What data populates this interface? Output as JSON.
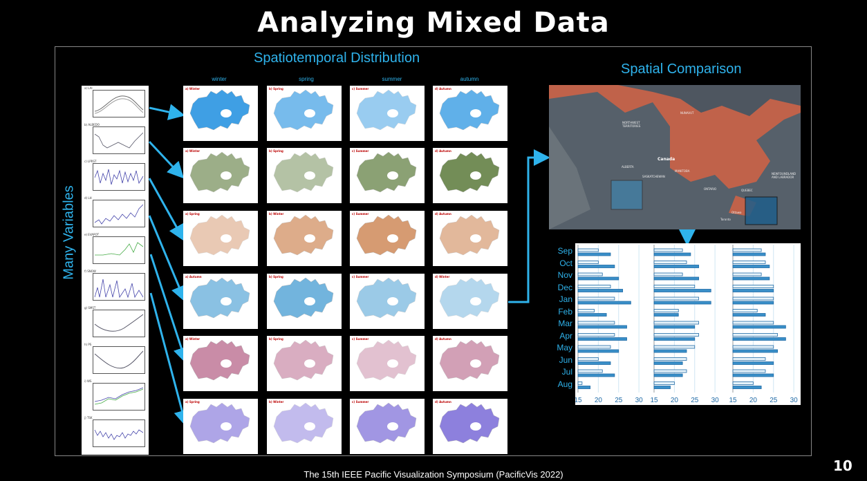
{
  "slide": {
    "title": "Analyzing Mixed Data",
    "footer": "The 15th IEEE Pacific Visualization Symposium (PacificVis 2022)",
    "page_number": "10"
  },
  "left_panel": {
    "label": "Many Variables",
    "variables": [
      {
        "label": "a) LAI"
      },
      {
        "label": "b) ALBEDO"
      },
      {
        "label": "c) LPRST"
      },
      {
        "label": "d) LH"
      },
      {
        "label": "e) EVAPOT"
      },
      {
        "label": "f) SNOW"
      },
      {
        "label": "g) SMST"
      },
      {
        "label": "h) PS"
      },
      {
        "label": "i) WS"
      },
      {
        "label": "j) TSK"
      }
    ]
  },
  "middle_panel": {
    "heading": "Spatiotemporal Distribution",
    "seasons": [
      "winter",
      "spring",
      "summer",
      "autumn"
    ],
    "rows": [
      {
        "color": "#1e8fe0",
        "tags": [
          "a) Winter",
          "b) Spring",
          "c) Summer",
          "d) Autumn"
        ]
      },
      {
        "color": "#5b7a3a",
        "tags": [
          "a) Winter",
          "b) Spring",
          "c) Summer",
          "d) Autumn"
        ]
      },
      {
        "color": "#d08a5a",
        "tags": [
          "a) Spring",
          "b) Winter",
          "c) Summer",
          "d) Autumn"
        ]
      },
      {
        "color": "#5aa8d8",
        "tags": [
          "a) Autumn",
          "b) Spring",
          "c) Summer",
          "d) Winter"
        ]
      },
      {
        "color": "#c07898",
        "tags": [
          "a) Winter",
          "b) Spring",
          "c) Summer",
          "d) Autumn"
        ]
      },
      {
        "color": "#7a6ad8",
        "tags": [
          "a) Spring",
          "b) Winter",
          "c) Summer",
          "d) Autumn"
        ]
      }
    ]
  },
  "right_panel": {
    "heading": "Spatial Comparison",
    "map_label": "Canada",
    "map_labels": [
      "NORTHWEST TERRITORIES",
      "NUNAVUT",
      "ALBERTA",
      "SASKATCHEWAN",
      "MANITOBA",
      "ONTARIO",
      "QUEBEC",
      "NEWFOUNDLAND AND LABRADOR",
      "Ottawa",
      "Toronto"
    ],
    "colors": {
      "land": "#56606a",
      "water": "#c0624a",
      "highlight": "#3a8fc0"
    }
  },
  "chart_data": {
    "type": "bar",
    "categories": [
      "Sep",
      "Oct",
      "Nov",
      "Dec",
      "Jan",
      "Feb",
      "Mar",
      "Apr",
      "May",
      "Jun",
      "Jul",
      "Aug"
    ],
    "panels": [
      {
        "series": [
          {
            "values": [
              20,
              20,
              21,
              23,
              24,
              19,
              24,
              24,
              23,
              20,
              21,
              16
            ]
          },
          {
            "values": [
              23,
              24,
              25,
              26,
              28,
              22,
              27,
              27,
              25,
              23,
              24,
              18
            ]
          }
        ]
      },
      {
        "series": [
          {
            "values": [
              22,
              23,
              22,
              25,
              26,
              21,
              26,
              26,
              25,
              23,
              23,
              20
            ]
          },
          {
            "values": [
              24,
              26,
              26,
              29,
              29,
              21,
              25,
              25,
              23,
              22,
              22,
              19
            ]
          }
        ]
      },
      {
        "series": [
          {
            "values": [
              22,
              23,
              22,
              25,
              25,
              21,
              25,
              26,
              25,
              23,
              23,
              20
            ]
          },
          {
            "values": [
              23,
              24,
              24,
              25,
              25,
              23,
              28,
              28,
              26,
              25,
              25,
              22
            ]
          }
        ]
      }
    ],
    "xticks": [
      "15",
      "20",
      "25",
      "30"
    ],
    "xlim": [
      15,
      31
    ],
    "colors": [
      "#5aa8d8",
      "#1f6aa6"
    ]
  }
}
